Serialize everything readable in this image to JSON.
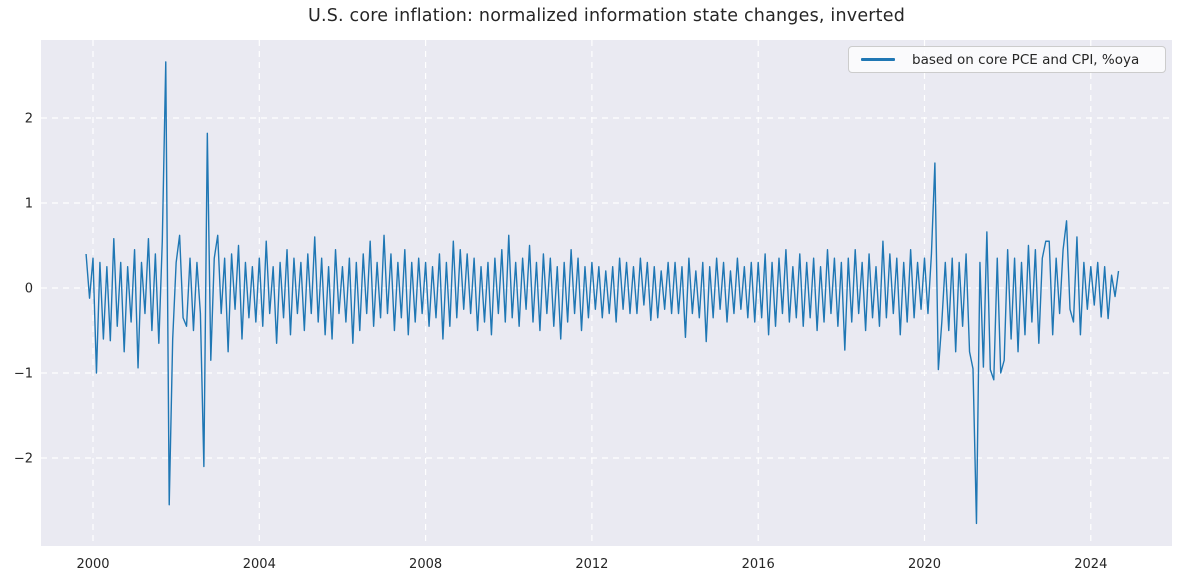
{
  "title": "U.S. core inflation: normalized information state changes, inverted",
  "legend": {
    "label": "based on core PCE and CPI, %oya",
    "position": "upper right"
  },
  "colors": {
    "figure_bg": "#ffffff",
    "axes_bg": "#eaeaf2",
    "grid": "#ffffff",
    "text": "#262626",
    "series": "#1f77b4",
    "legend_border": "#cccccc"
  },
  "chart_data": {
    "type": "line",
    "title": "U.S. core inflation: normalized information state changes, inverted",
    "xlabel": "",
    "ylabel": "",
    "grid": true,
    "grid_style": "dashed",
    "legend_entries": [
      "based on core PCE and CPI, %oya"
    ],
    "legend_position": "upper right",
    "x_start": "1999-11",
    "frequency": "monthly",
    "xlim_years": [
      1998.75,
      2025.95
    ],
    "ylim": [
      -3.04,
      2.92
    ],
    "x_ticks": [
      {
        "year": 2000,
        "label": "2000"
      },
      {
        "year": 2004,
        "label": "2004"
      },
      {
        "year": 2008,
        "label": "2008"
      },
      {
        "year": 2012,
        "label": "2012"
      },
      {
        "year": 2016,
        "label": "2016"
      },
      {
        "year": 2020,
        "label": "2020"
      },
      {
        "year": 2024,
        "label": "2024"
      }
    ],
    "y_ticks": [
      {
        "value": 2,
        "label": "2"
      },
      {
        "value": 1,
        "label": "1"
      },
      {
        "value": 0,
        "label": "0"
      },
      {
        "value": -1,
        "label": "−1"
      },
      {
        "value": -2,
        "label": "−2"
      }
    ],
    "series": [
      {
        "name": "based on core PCE and CPI, %oya",
        "color": "#1f77b4",
        "values": [
          0.4,
          -0.12,
          0.35,
          -1.0,
          0.3,
          -0.6,
          0.25,
          -0.62,
          0.58,
          -0.45,
          0.3,
          -0.75,
          0.25,
          -0.4,
          0.45,
          -0.94,
          0.3,
          -0.3,
          0.58,
          -0.5,
          0.4,
          -0.65,
          0.55,
          2.66,
          -2.55,
          -0.6,
          0.3,
          0.62,
          -0.35,
          -0.45,
          0.35,
          -0.5,
          0.3,
          -0.3,
          -2.1,
          1.82,
          -0.85,
          0.35,
          0.62,
          -0.3,
          0.35,
          -0.75,
          0.4,
          -0.25,
          0.5,
          -0.6,
          0.3,
          -0.35,
          0.25,
          -0.4,
          0.35,
          -0.45,
          0.55,
          -0.3,
          0.25,
          -0.65,
          0.3,
          -0.35,
          0.45,
          -0.55,
          0.35,
          -0.3,
          0.3,
          -0.5,
          0.4,
          -0.3,
          0.6,
          -0.4,
          0.35,
          -0.55,
          0.25,
          -0.6,
          0.45,
          -0.3,
          0.25,
          -0.4,
          0.35,
          -0.65,
          0.3,
          -0.5,
          0.4,
          -0.3,
          0.55,
          -0.45,
          0.3,
          -0.35,
          0.62,
          -0.3,
          0.4,
          -0.5,
          0.3,
          -0.35,
          0.45,
          -0.55,
          0.3,
          -0.4,
          0.35,
          -0.3,
          0.3,
          -0.45,
          0.25,
          -0.35,
          0.4,
          -0.6,
          0.3,
          -0.45,
          0.55,
          -0.35,
          0.45,
          -0.25,
          0.4,
          -0.3,
          0.35,
          -0.5,
          0.25,
          -0.4,
          0.3,
          -0.55,
          0.35,
          -0.3,
          0.45,
          -0.4,
          0.62,
          -0.35,
          0.3,
          -0.45,
          0.35,
          -0.25,
          0.5,
          -0.4,
          0.3,
          -0.5,
          0.4,
          -0.3,
          0.35,
          -0.45,
          0.25,
          -0.6,
          0.3,
          -0.4,
          0.45,
          -0.3,
          0.35,
          -0.5,
          0.25,
          -0.35,
          0.3,
          -0.25,
          0.25,
          -0.35,
          0.2,
          -0.3,
          0.25,
          -0.4,
          0.35,
          -0.25,
          0.3,
          -0.3,
          0.25,
          -0.3,
          0.35,
          -0.2,
          0.3,
          -0.38,
          0.25,
          -0.35,
          0.2,
          -0.25,
          0.3,
          -0.3,
          0.3,
          -0.3,
          0.25,
          -0.58,
          0.35,
          -0.3,
          0.2,
          -0.35,
          0.3,
          -0.63,
          0.25,
          -0.35,
          0.35,
          -0.25,
          0.3,
          -0.4,
          0.2,
          -0.3,
          0.35,
          -0.25,
          0.25,
          -0.35,
          0.3,
          -0.4,
          0.3,
          -0.35,
          0.4,
          -0.55,
          0.3,
          -0.45,
          0.35,
          -0.3,
          0.45,
          -0.4,
          0.25,
          -0.35,
          0.4,
          -0.45,
          0.3,
          -0.35,
          0.35,
          -0.5,
          0.25,
          -0.4,
          0.45,
          -0.3,
          0.35,
          -0.45,
          0.3,
          -0.73,
          0.35,
          -0.4,
          0.45,
          -0.3,
          0.3,
          -0.5,
          0.4,
          -0.35,
          0.25,
          -0.45,
          0.55,
          -0.35,
          0.4,
          -0.3,
          0.35,
          -0.55,
          0.3,
          -0.4,
          0.45,
          -0.35,
          0.3,
          -0.25,
          0.35,
          -0.3,
          0.4,
          1.47,
          -0.96,
          -0.4,
          0.3,
          -0.5,
          0.35,
          -0.75,
          0.3,
          -0.45,
          0.4,
          -0.75,
          -0.95,
          -2.77,
          0.3,
          -0.93,
          0.66,
          -0.96,
          -1.08,
          0.35,
          -1.0,
          -0.85,
          0.45,
          -0.6,
          0.35,
          -0.75,
          0.3,
          -0.55,
          0.5,
          -0.4,
          0.45,
          -0.65,
          0.35,
          0.55,
          0.55,
          -0.55,
          0.35,
          -0.3,
          0.45,
          0.79,
          -0.25,
          -0.4,
          0.6,
          -0.55,
          0.3,
          -0.25,
          0.25,
          -0.2,
          0.3,
          -0.34,
          0.25,
          -0.36,
          0.15,
          -0.1,
          0.2
        ]
      }
    ]
  }
}
